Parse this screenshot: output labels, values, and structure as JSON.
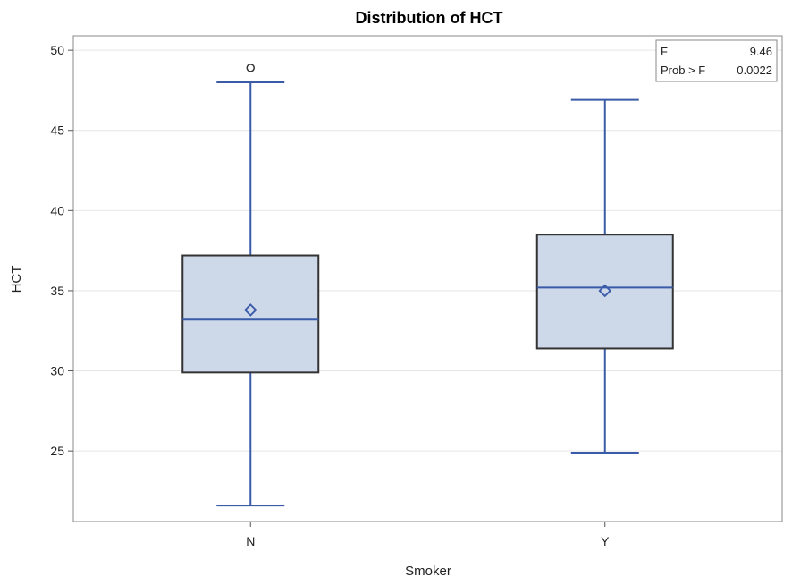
{
  "chart_data": {
    "type": "box",
    "title": "Distribution of HCT",
    "xlabel": "Smoker",
    "ylabel": "HCT",
    "categories": [
      "N",
      "Y"
    ],
    "ylim": [
      20.6,
      50.9
    ],
    "yticks": [
      25,
      30,
      35,
      40,
      45,
      50
    ],
    "grid": true,
    "boxes": [
      {
        "category": "N",
        "whisker_low": 21.6,
        "q1": 29.9,
        "median": 33.2,
        "q3": 37.2,
        "whisker_high": 48.0,
        "mean": 33.8,
        "outliers": [
          48.9
        ]
      },
      {
        "category": "Y",
        "whisker_low": 24.9,
        "q1": 31.4,
        "median": 35.2,
        "q3": 38.5,
        "whisker_high": 46.9,
        "mean": 35.0,
        "outliers": []
      }
    ],
    "inset": {
      "placement": "top-right",
      "rows": [
        {
          "label": "F",
          "value": "9.46"
        },
        {
          "label": "Prob > F",
          "value": "0.0022"
        }
      ]
    },
    "colors": {
      "box_fill": "#cdd8e8",
      "box_edge": "#333333",
      "line": "#3a5ba8",
      "grid": "#e6e6e6"
    }
  }
}
